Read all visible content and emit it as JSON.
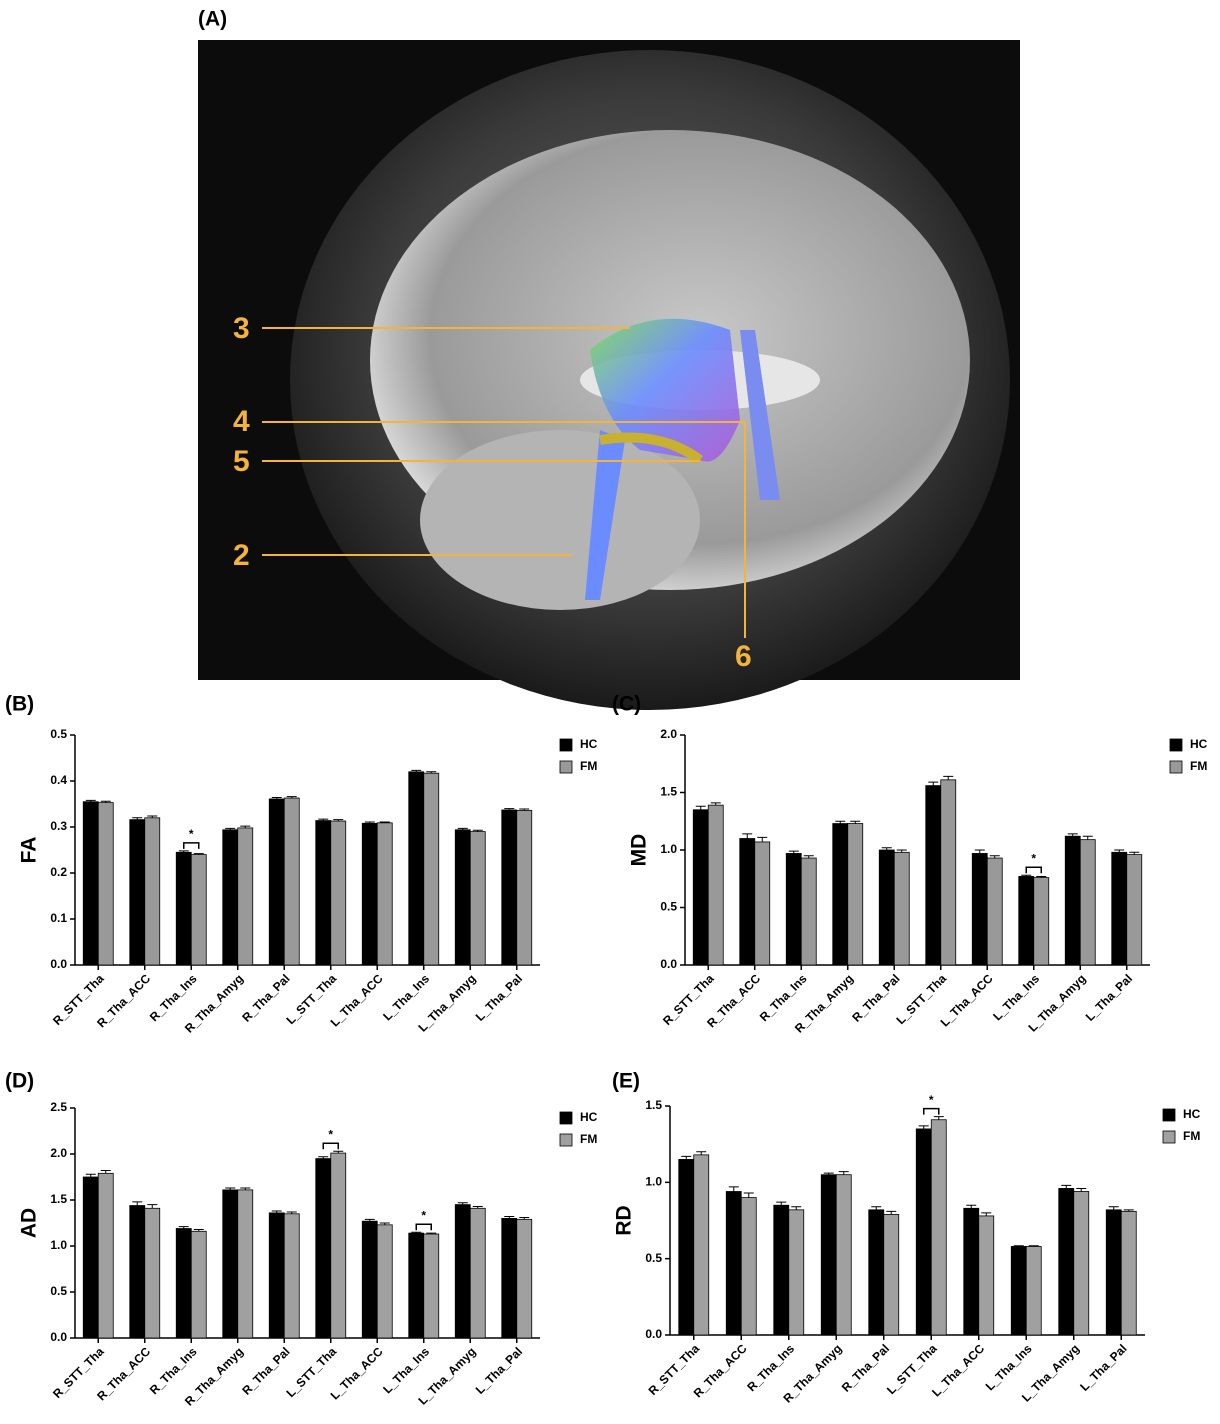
{
  "panel_a": {
    "label": "(A)",
    "markers": [
      "3",
      "4",
      "5",
      "2",
      "6"
    ]
  },
  "chart_data": [
    {
      "type": "bar",
      "panel_label": "(B)",
      "ylabel": "FA",
      "categories": [
        "R_STT_Tha",
        "R_Tha_ACC",
        "R_Tha_Ins",
        "R_Tha_Amyg",
        "R_Tha_Pal",
        "L_STT_Tha",
        "L_Tha_ACC",
        "L_Tha_Ins",
        "L_Tha_Amyg",
        "L_Tha_Pal"
      ],
      "series": [
        {
          "name": "HC",
          "color": "#000000",
          "values": [
            0.355,
            0.316,
            0.245,
            0.294,
            0.361,
            0.314,
            0.308,
            0.42,
            0.294,
            0.337
          ],
          "errors": [
            0.003,
            0.004,
            0.003,
            0.003,
            0.003,
            0.003,
            0.003,
            0.003,
            0.003,
            0.003
          ]
        },
        {
          "name": "FM",
          "color": "#999999",
          "values": [
            0.353,
            0.32,
            0.24,
            0.298,
            0.363,
            0.313,
            0.309,
            0.417,
            0.29,
            0.336
          ],
          "errors": [
            0.003,
            0.004,
            0.002,
            0.004,
            0.003,
            0.003,
            0.002,
            0.003,
            0.003,
            0.003
          ]
        }
      ],
      "ylim": [
        0,
        0.5
      ],
      "yticks": [
        {
          "value": 0,
          "label": "0.0"
        },
        0.1,
        0.2,
        0.3,
        0.4,
        0.5
      ],
      "annotations": [
        {
          "text": "*",
          "category": "R_Tha_Ins"
        }
      ]
    },
    {
      "type": "bar",
      "panel_label": "(C)",
      "ylabel": "MD",
      "categories": [
        "R_STT_Tha",
        "R_Tha_ACC",
        "R_Tha_Ins",
        "R_Tha_Amyg",
        "R_Tha_Pal",
        "L_STT_Tha",
        "L_Tha_ACC",
        "L_Tha_Ins",
        "L_Tha_Amyg",
        "L_Tha_Pal"
      ],
      "series": [
        {
          "name": "HC",
          "color": "#000000",
          "values": [
            1.35,
            1.1,
            0.97,
            1.23,
            1.0,
            1.56,
            0.97,
            0.77,
            1.12,
            0.98
          ],
          "errors": [
            0.03,
            0.04,
            0.02,
            0.02,
            0.02,
            0.03,
            0.03,
            0.01,
            0.02,
            0.02
          ]
        },
        {
          "name": "FM",
          "color": "#999999",
          "values": [
            1.39,
            1.07,
            0.93,
            1.23,
            0.98,
            1.61,
            0.93,
            0.76,
            1.09,
            0.96
          ],
          "errors": [
            0.02,
            0.04,
            0.02,
            0.02,
            0.02,
            0.03,
            0.02,
            0.01,
            0.03,
            0.02
          ]
        }
      ],
      "ylim": [
        0,
        2.0
      ],
      "yticks": [
        {
          "value": 0,
          "label": "0.0"
        },
        0.5,
        {
          "value": 1,
          "label": "1.0"
        },
        1.5,
        {
          "value": 2,
          "label": "2.0"
        }
      ],
      "annotations": [
        {
          "text": "*",
          "category": "L_Tha_Ins"
        }
      ]
    },
    {
      "type": "bar",
      "panel_label": "(D)",
      "ylabel": "AD",
      "categories": [
        "R_STT_Tha",
        "R_Tha_ACC",
        "R_Tha_Ins",
        "R_Tha_Amyg",
        "R_Tha_Pal",
        "L_STT_Tha",
        "L_Tha_ACC",
        "L_Tha_Ins",
        "L_Tha_Amyg",
        "L_Tha_Pal"
      ],
      "series": [
        {
          "name": "HC",
          "color": "#000000",
          "values": [
            1.75,
            1.44,
            1.19,
            1.61,
            1.36,
            1.95,
            1.27,
            1.14,
            1.45,
            1.3
          ],
          "errors": [
            0.03,
            0.04,
            0.02,
            0.02,
            0.02,
            0.02,
            0.02,
            0.01,
            0.02,
            0.02
          ]
        },
        {
          "name": "FM",
          "color": "#a0a0a0",
          "values": [
            1.79,
            1.41,
            1.16,
            1.61,
            1.35,
            2.01,
            1.23,
            1.13,
            1.41,
            1.29
          ],
          "errors": [
            0.03,
            0.04,
            0.02,
            0.02,
            0.02,
            0.02,
            0.02,
            0.01,
            0.02,
            0.02
          ]
        }
      ],
      "ylim": [
        0,
        2.5
      ],
      "yticks": [
        {
          "value": 0,
          "label": "0.0"
        },
        0.5,
        {
          "value": 1,
          "label": "1.0"
        },
        1.5,
        {
          "value": 2,
          "label": "2.0"
        },
        2.5
      ],
      "annotations": [
        {
          "text": "*",
          "category": "L_STT_Tha"
        },
        {
          "text": "*",
          "category": "L_Tha_Ins"
        }
      ]
    },
    {
      "type": "bar",
      "panel_label": "(E)",
      "ylabel": "RD",
      "categories": [
        "R_STT_Tha",
        "R_Tha_ACC",
        "R_Tha_Ins",
        "R_Tha_Amyg",
        "R_Tha_Pal",
        "L_STT_Tha",
        "L_Tha_ACC",
        "L_Tha_Ins",
        "L_Tha_Amyg",
        "L_Tha_Pal"
      ],
      "series": [
        {
          "name": "HC",
          "color": "#000000",
          "values": [
            1.15,
            0.94,
            0.85,
            1.05,
            0.82,
            1.35,
            0.83,
            0.58,
            0.96,
            0.82
          ],
          "errors": [
            0.02,
            0.03,
            0.02,
            0.01,
            0.02,
            0.02,
            0.02,
            0.005,
            0.02,
            0.02
          ]
        },
        {
          "name": "FM",
          "color": "#a0a0a0",
          "values": [
            1.18,
            0.9,
            0.82,
            1.05,
            0.79,
            1.41,
            0.78,
            0.58,
            0.94,
            0.81
          ],
          "errors": [
            0.02,
            0.03,
            0.02,
            0.02,
            0.02,
            0.02,
            0.02,
            0.005,
            0.02,
            0.01
          ]
        }
      ],
      "ylim": [
        0,
        1.5
      ],
      "yticks": [
        {
          "value": 0,
          "label": "0.0"
        },
        0.5,
        {
          "value": 1,
          "label": "1.0"
        },
        1.5
      ],
      "annotations": [
        {
          "text": "*",
          "category": "L_STT_Tha"
        }
      ]
    }
  ]
}
